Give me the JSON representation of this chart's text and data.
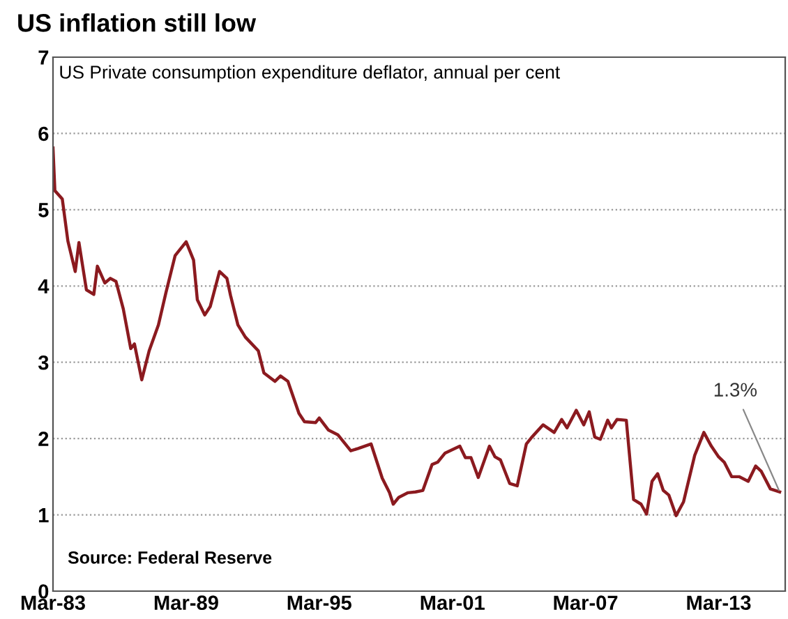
{
  "chart_data": {
    "type": "line",
    "title": "US inflation still low",
    "subtitle": "US Private consumption expenditure deflator, annual per cent",
    "annotations": [
      "Source: Federal Reserve",
      {
        "text": "1.3%",
        "x": "2015-12",
        "y": 1.3
      }
    ],
    "x": [
      "1983-03",
      "1983-04",
      "1983-08",
      "1983-11",
      "1984-03",
      "1984-05",
      "1984-09",
      "1985-01",
      "1985-03",
      "1985-07",
      "1985-10",
      "1986-01",
      "1986-05",
      "1986-09",
      "1986-11",
      "1987-03",
      "1987-07",
      "1987-12",
      "1988-04",
      "1988-09",
      "1989-03",
      "1989-07",
      "1989-09",
      "1990-01",
      "1990-04",
      "1990-09",
      "1991-01",
      "1991-03",
      "1991-07",
      "1991-11",
      "1992-06",
      "1992-09",
      "1993-03",
      "1993-06",
      "1993-10",
      "1994-04",
      "1994-07",
      "1995-01",
      "1995-03",
      "1995-08",
      "1996-01",
      "1996-08",
      "1996-12",
      "1997-07",
      "1998-01",
      "1998-05",
      "1998-07",
      "1998-10",
      "1999-03",
      "1999-07",
      "1999-11",
      "2000-04",
      "2000-07",
      "2000-11",
      "2001-07",
      "2001-10",
      "2002-01",
      "2002-05",
      "2002-11",
      "2003-02",
      "2003-05",
      "2003-10",
      "2004-02",
      "2004-07",
      "2004-10",
      "2005-04",
      "2005-10",
      "2006-02",
      "2006-05",
      "2006-10",
      "2007-02",
      "2007-05",
      "2007-08",
      "2007-11",
      "2008-03",
      "2008-05",
      "2008-08",
      "2009-01",
      "2009-05",
      "2009-09",
      "2009-12",
      "2010-03",
      "2010-06",
      "2010-09",
      "2010-12",
      "2011-04",
      "2011-08",
      "2012-02",
      "2012-07",
      "2012-11",
      "2013-03",
      "2013-06",
      "2013-10",
      "2014-02",
      "2014-07",
      "2014-11",
      "2015-02",
      "2015-07",
      "2015-12"
    ],
    "series": [
      {
        "color": "#8b1a1f",
        "values": [
          5.81,
          5.25,
          5.14,
          4.59,
          4.19,
          4.57,
          3.95,
          3.89,
          4.26,
          4.04,
          4.1,
          4.06,
          3.7,
          3.18,
          3.24,
          2.77,
          3.15,
          3.49,
          3.91,
          4.4,
          4.58,
          4.34,
          3.82,
          3.62,
          3.73,
          4.19,
          4.1,
          3.88,
          3.49,
          3.33,
          3.15,
          2.86,
          2.75,
          2.82,
          2.75,
          2.33,
          2.22,
          2.21,
          2.27,
          2.11,
          2.05,
          1.84,
          1.87,
          1.93,
          1.48,
          1.29,
          1.14,
          1.23,
          1.29,
          1.3,
          1.32,
          1.66,
          1.69,
          1.81,
          1.9,
          1.75,
          1.75,
          1.49,
          1.9,
          1.76,
          1.72,
          1.41,
          1.38,
          1.93,
          2.02,
          2.18,
          2.08,
          2.25,
          2.14,
          2.37,
          2.18,
          2.35,
          2.02,
          1.99,
          2.24,
          2.14,
          2.25,
          2.24,
          1.2,
          1.14,
          1.01,
          1.44,
          1.54,
          1.32,
          1.26,
          0.99,
          1.17,
          1.78,
          2.08,
          1.9,
          1.76,
          1.69,
          1.5,
          1.5,
          1.44,
          1.64,
          1.57,
          1.34,
          1.3
        ]
      }
    ],
    "xlim": [
      "1983-03",
      "2016-03"
    ],
    "ylim": [
      0,
      7
    ],
    "yticks": [
      0,
      1,
      2,
      3,
      4,
      5,
      6,
      7
    ],
    "xticks": [
      {
        "value": "1983-03",
        "label": "Mar-83"
      },
      {
        "value": "1989-03",
        "label": "Mar-89"
      },
      {
        "value": "1995-03",
        "label": "Mar-95"
      },
      {
        "value": "2001-03",
        "label": "Mar-01"
      },
      {
        "value": "2007-03",
        "label": "Mar-07"
      },
      {
        "value": "2013-03",
        "label": "Mar-13"
      }
    ],
    "grid": "y",
    "line_style": "solid",
    "marker": "none",
    "legend": false
  }
}
